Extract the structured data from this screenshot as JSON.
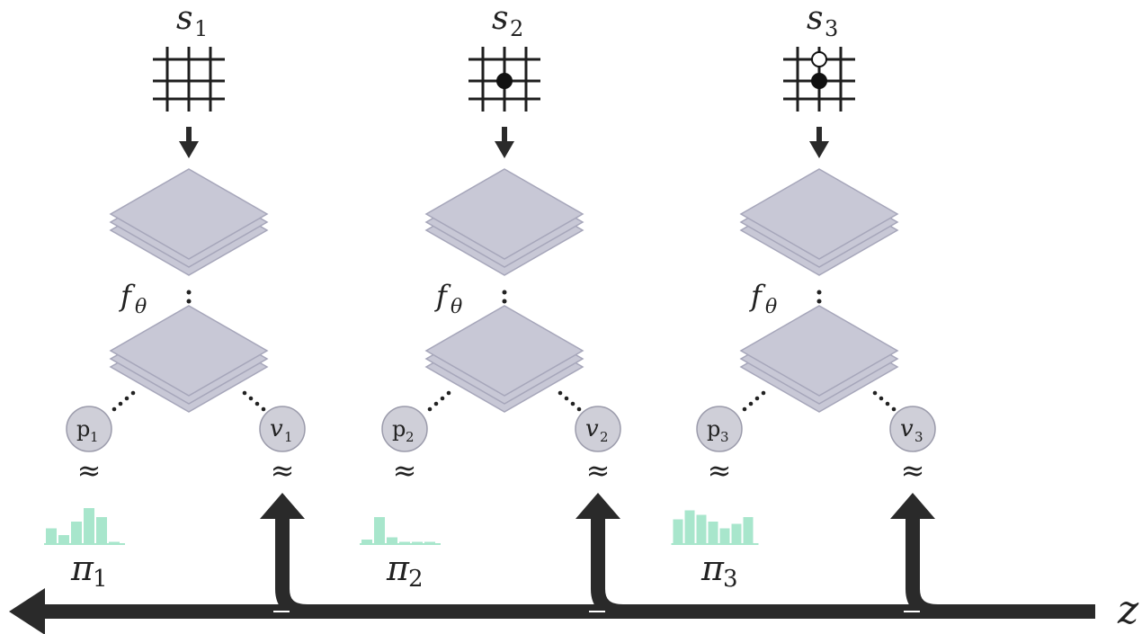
{
  "diagram": {
    "return_label": "z",
    "approx_symbol": "≈",
    "columns": [
      {
        "state_label": "s",
        "state_index": "1",
        "network_label": "f",
        "network_sub": "θ",
        "p_label": "p",
        "p_index": "1",
        "v_label": "v",
        "v_index": "1",
        "pi_label": "π",
        "pi_index": "1",
        "stones": [],
        "policy": [
          0.35,
          0.2,
          0.5,
          0.8,
          0.6,
          0.05
        ]
      },
      {
        "state_label": "s",
        "state_index": "2",
        "network_label": "f",
        "network_sub": "θ",
        "p_label": "p",
        "p_index": "2",
        "v_label": "v",
        "v_index": "2",
        "pi_label": "π",
        "pi_index": "2",
        "stones": [
          {
            "color": "black",
            "col": 1,
            "row": 1
          }
        ],
        "policy": [
          0.1,
          0.6,
          0.15,
          0.05,
          0.05,
          0.05
        ]
      },
      {
        "state_label": "s",
        "state_index": "3",
        "network_label": "f",
        "network_sub": "θ",
        "p_label": "p",
        "p_index": "3",
        "v_label": "v",
        "v_index": "3",
        "pi_label": "π",
        "pi_index": "3",
        "stones": [
          {
            "color": "white",
            "col": 1,
            "row": 0
          },
          {
            "color": "black",
            "col": 1,
            "row": 1
          }
        ],
        "policy": [
          0.55,
          0.75,
          0.65,
          0.5,
          0.35,
          0.45,
          0.6
        ]
      }
    ],
    "colors": {
      "layer_fill": "#c8c8d6",
      "layer_stroke": "#a6a6ba",
      "node_fill": "#cfcfd8",
      "node_stroke": "#9b9bab",
      "policy_bar": "#a8e6cc",
      "arrow": "#2a2a2a"
    }
  }
}
